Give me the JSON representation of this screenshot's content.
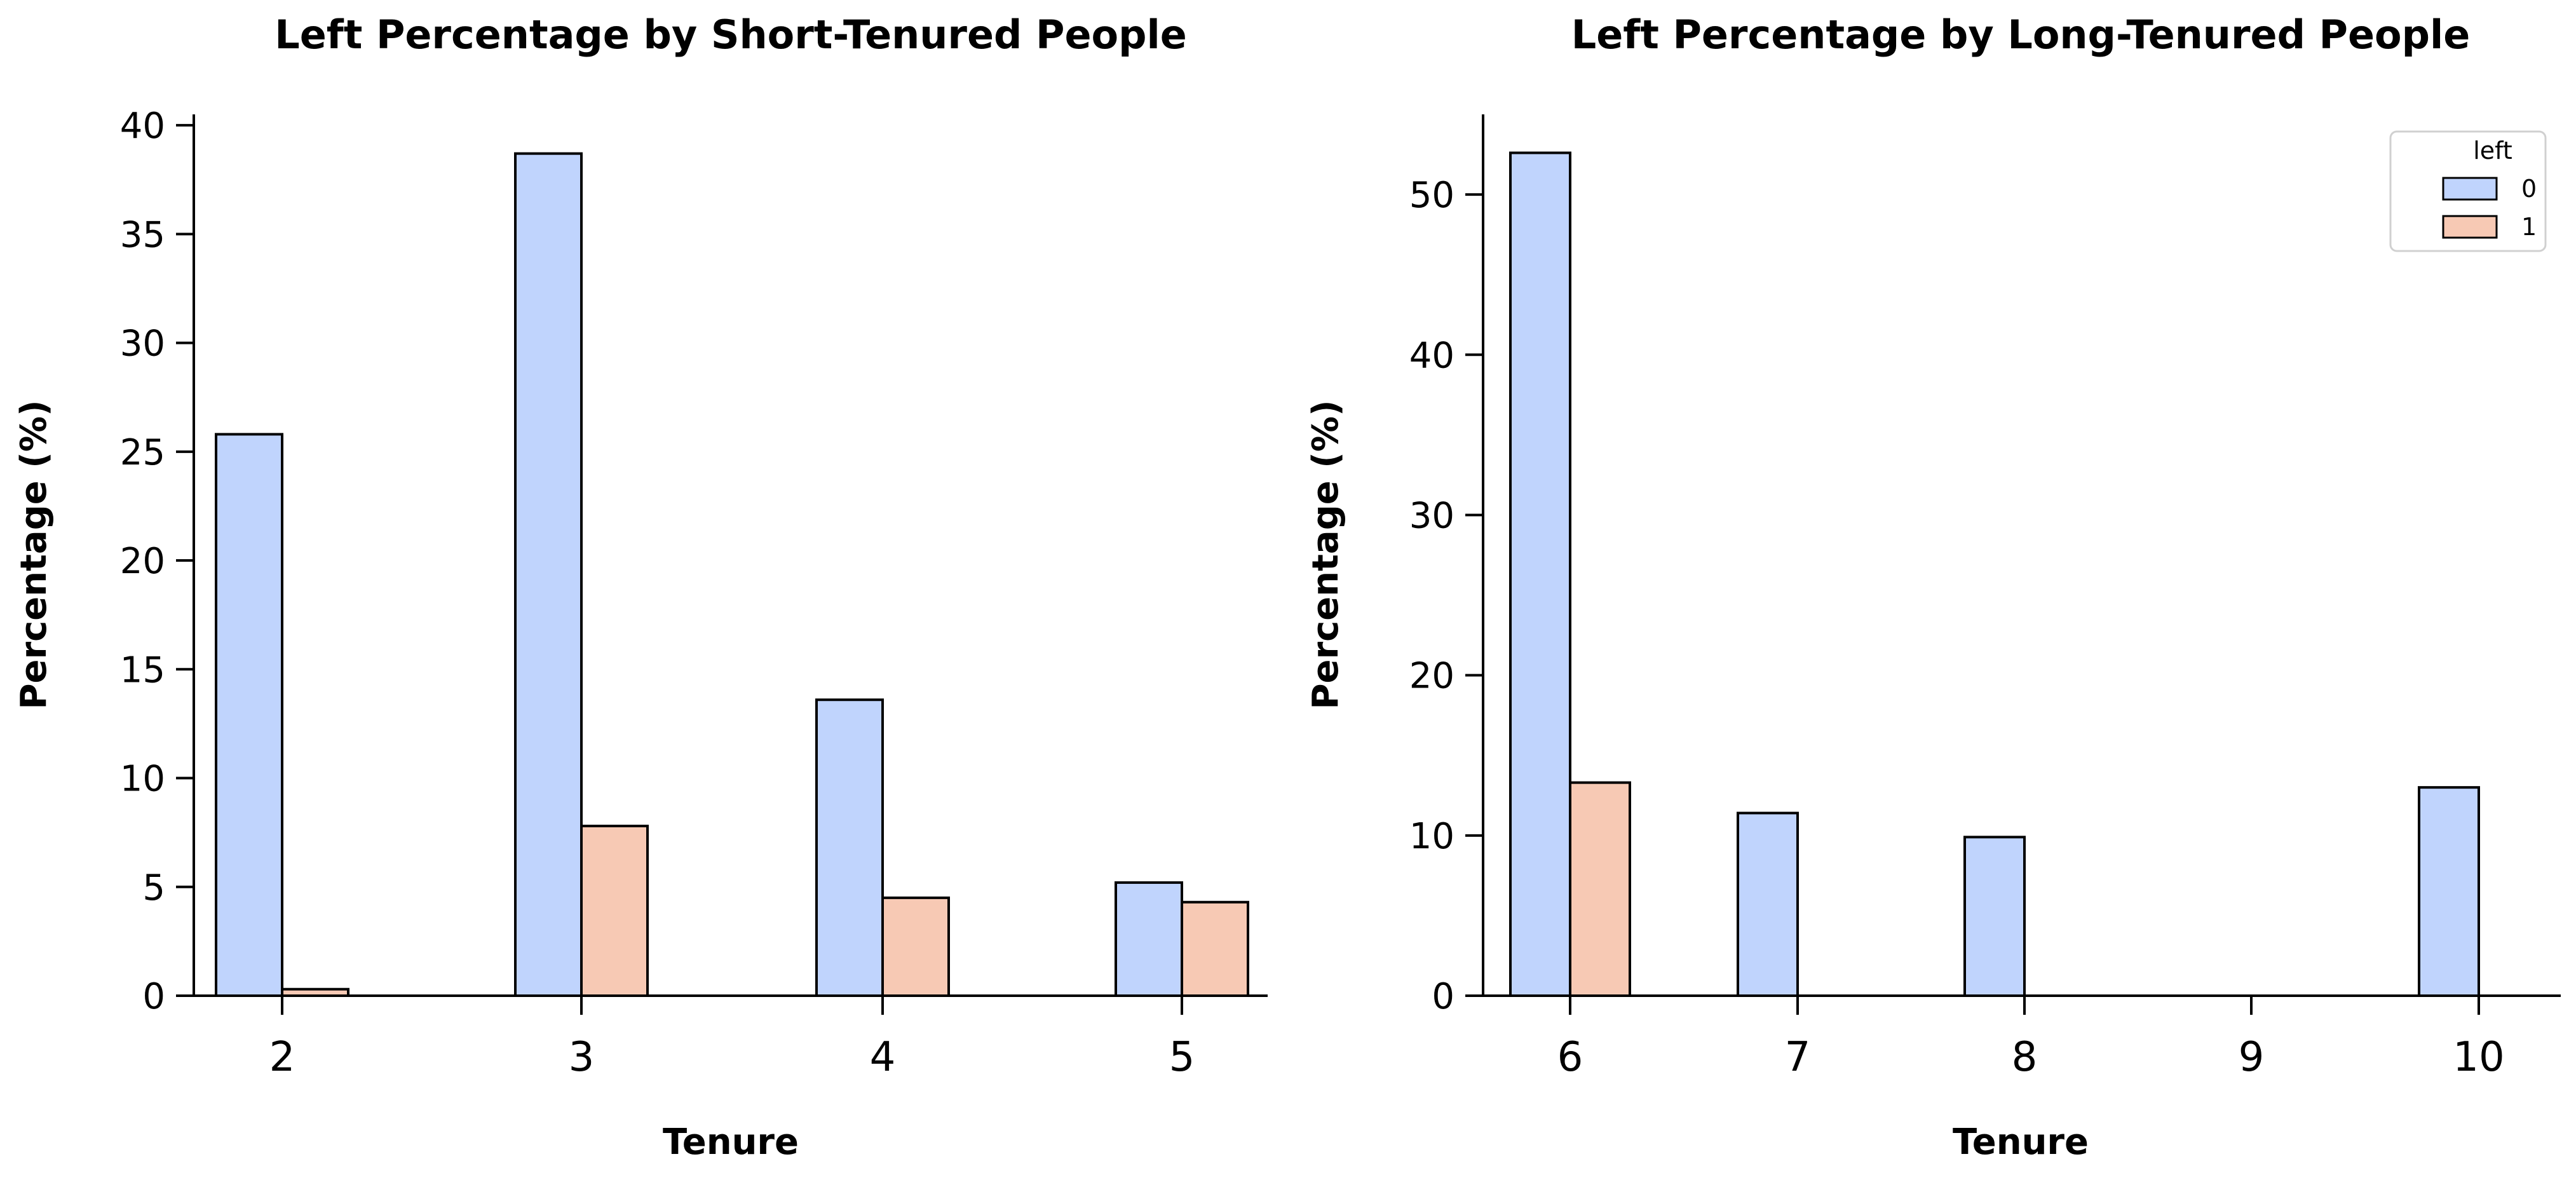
{
  "colors": {
    "stayed": "#c0d4fd",
    "left": "#f7c9b4",
    "edge": "#000000"
  },
  "chart_data": [
    {
      "type": "bar",
      "title": "Left Percentage by Short-Tenured People",
      "xlabel": "Tenure",
      "ylabel": "Percentage (%)",
      "categories": [
        "2",
        "3",
        "4",
        "5"
      ],
      "series": [
        {
          "name": "0",
          "values": [
            25.8,
            38.7,
            13.6,
            5.2
          ]
        },
        {
          "name": "1",
          "values": [
            0.3,
            7.8,
            4.5,
            4.3
          ]
        }
      ],
      "ylim": [
        0,
        40.5
      ],
      "yticks": [
        0,
        5,
        10,
        15,
        20,
        25,
        30,
        35,
        40
      ],
      "legend": null
    },
    {
      "type": "bar",
      "title": "Left Percentage by Long-Tenured People",
      "xlabel": "Tenure",
      "ylabel": "Percentage (%)",
      "categories": [
        "6",
        "7",
        "8",
        "9",
        "10"
      ],
      "series": [
        {
          "name": "0",
          "values": [
            52.6,
            11.4,
            9.9,
            0,
            13.0
          ]
        },
        {
          "name": "1",
          "values": [
            13.3,
            0,
            0,
            0,
            0
          ]
        }
      ],
      "ylim": [
        0,
        55
      ],
      "yticks": [
        0,
        10,
        20,
        30,
        40,
        50
      ],
      "legend": {
        "title": "left",
        "placement": "top-right",
        "entries": [
          "0",
          "1"
        ]
      }
    }
  ]
}
